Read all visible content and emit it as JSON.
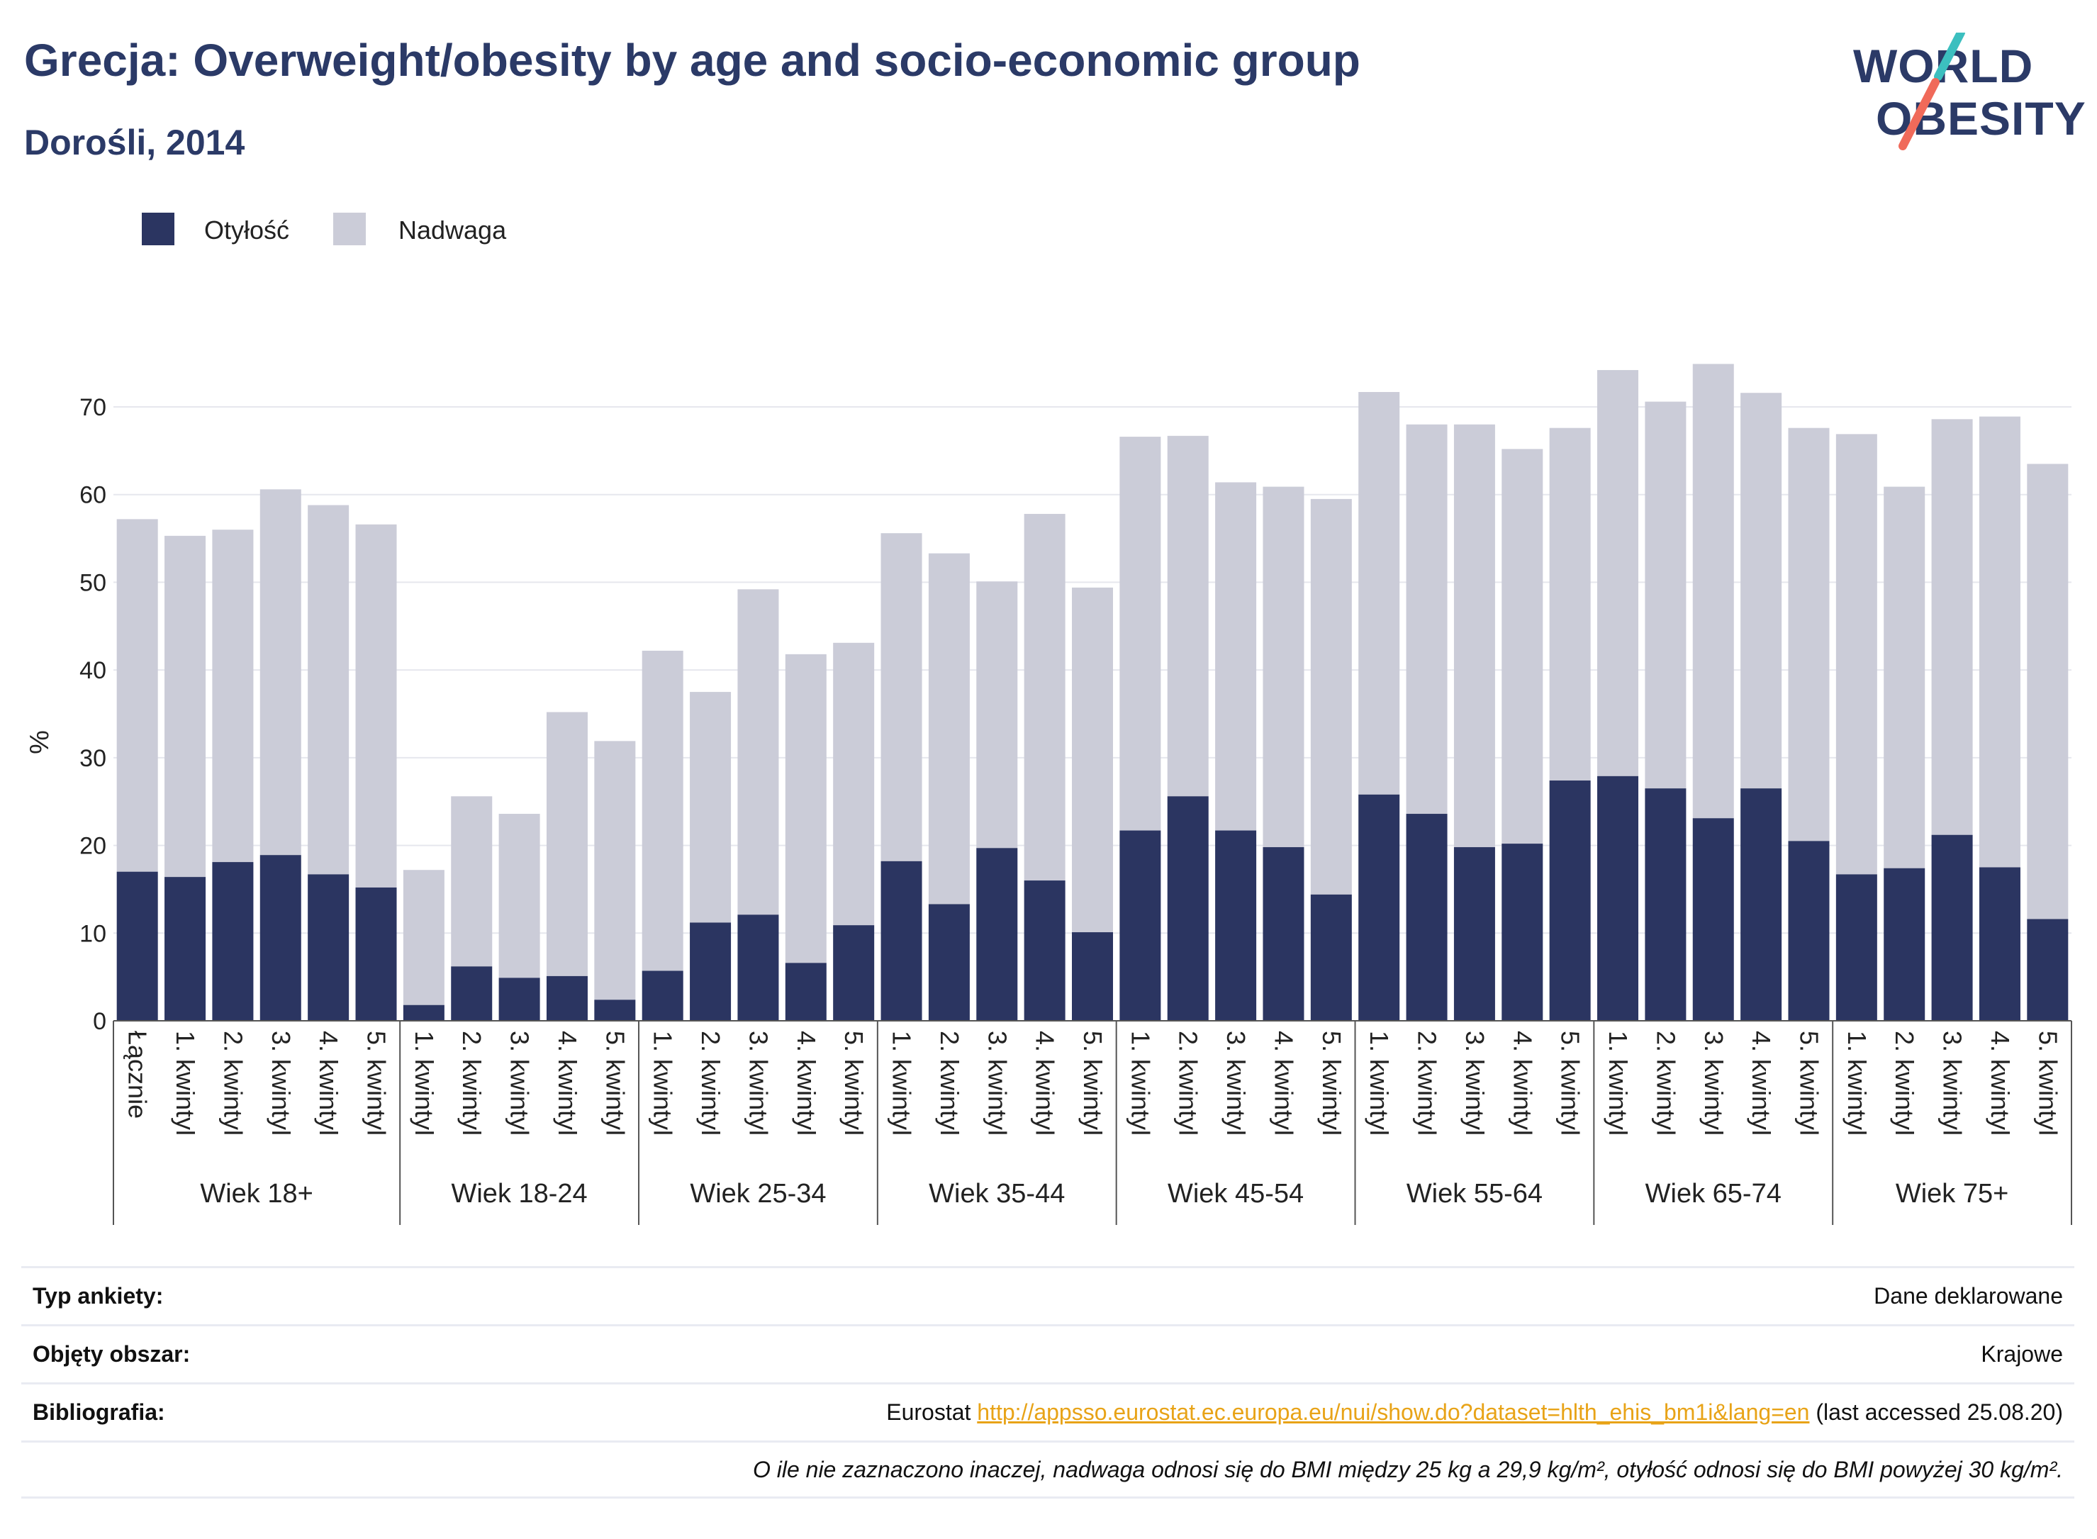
{
  "header": {
    "title": "Grecja: Overweight/obesity by age and socio-economic group",
    "subtitle": "Dorośli, 2014"
  },
  "logo": {
    "line1": "WORLD",
    "line2": "OBESITY",
    "colors": {
      "text": "#2b3a67",
      "slash_top": "#3cbfbf",
      "slash_bottom": "#f06a5a"
    }
  },
  "colors": {
    "obesity": "#2b3561",
    "overweight": "#cbccd8",
    "grid": "#e6e7ee",
    "axis": "#555555"
  },
  "chart_data": {
    "type": "bar",
    "stacked": true,
    "title": "",
    "ylabel": "%",
    "ylim": [
      0,
      80
    ],
    "yticks": [
      0,
      10,
      20,
      30,
      40,
      50,
      60,
      70
    ],
    "grid": true,
    "legend_placement": "top-left",
    "legend": [
      "Otyłość",
      "Nadwaga"
    ],
    "groups": [
      {
        "label": "Wiek 18+",
        "categories": [
          "Łącznie",
          "1. kwintyl",
          "2. kwintyl",
          "3. kwintyl",
          "4. kwintyl",
          "5. kwintyl"
        ],
        "obesity": [
          17.0,
          16.4,
          18.1,
          18.9,
          16.7,
          15.2
        ],
        "overweight": [
          40.2,
          38.9,
          37.9,
          41.7,
          42.1,
          41.4
        ]
      },
      {
        "label": "Wiek 18-24",
        "categories": [
          "1. kwintyl",
          "2. kwintyl",
          "3. kwintyl",
          "4. kwintyl",
          "5. kwintyl"
        ],
        "obesity": [
          1.8,
          6.2,
          4.9,
          5.1,
          2.4
        ],
        "overweight": [
          15.4,
          19.4,
          18.7,
          30.1,
          29.5
        ]
      },
      {
        "label": "Wiek 25-34",
        "categories": [
          "1. kwintyl",
          "2. kwintyl",
          "3. kwintyl",
          "4. kwintyl",
          "5. kwintyl"
        ],
        "obesity": [
          5.7,
          11.2,
          12.1,
          6.6,
          10.9
        ],
        "overweight": [
          36.5,
          26.3,
          37.1,
          35.2,
          32.2
        ]
      },
      {
        "label": "Wiek 35-44",
        "categories": [
          "1. kwintyl",
          "2. kwintyl",
          "3. kwintyl",
          "4. kwintyl",
          "5. kwintyl"
        ],
        "obesity": [
          18.2,
          13.3,
          19.7,
          16.0,
          10.1
        ],
        "overweight": [
          37.4,
          40.0,
          30.4,
          41.8,
          39.3
        ]
      },
      {
        "label": "Wiek 45-54",
        "categories": [
          "1. kwintyl",
          "2. kwintyl",
          "3. kwintyl",
          "4. kwintyl",
          "5. kwintyl"
        ],
        "obesity": [
          21.7,
          25.6,
          21.7,
          19.8,
          14.4
        ],
        "overweight": [
          44.9,
          41.1,
          39.7,
          41.1,
          45.1
        ]
      },
      {
        "label": "Wiek 55-64",
        "categories": [
          "1. kwintyl",
          "2. kwintyl",
          "3. kwintyl",
          "4. kwintyl",
          "5. kwintyl"
        ],
        "obesity": [
          25.8,
          23.6,
          19.8,
          20.2,
          27.4
        ],
        "overweight": [
          45.9,
          44.4,
          48.2,
          45.0,
          40.2
        ]
      },
      {
        "label": "Wiek 65-74",
        "categories": [
          "1. kwintyl",
          "2. kwintyl",
          "3. kwintyl",
          "4. kwintyl",
          "5. kwintyl"
        ],
        "obesity": [
          27.9,
          26.5,
          23.1,
          26.5,
          20.5
        ],
        "overweight": [
          46.3,
          44.1,
          51.8,
          45.1,
          47.1
        ]
      },
      {
        "label": "Wiek 75+",
        "categories": [
          "1. kwintyl",
          "2. kwintyl",
          "3. kwintyl",
          "4. kwintyl",
          "5. kwintyl"
        ],
        "obesity": [
          16.7,
          17.4,
          21.2,
          17.5,
          11.6
        ],
        "overweight": [
          50.2,
          43.5,
          47.4,
          51.4,
          51.9
        ]
      }
    ]
  },
  "info": {
    "survey_label": "Typ ankiety:",
    "survey_value": "Dane deklarowane",
    "area_label": "Objęty obszar:",
    "area_value": "Krajowe",
    "biblio_label": "Bibliografia:",
    "biblio_prefix": "Eurostat",
    "biblio_link": "http://appsso.eurostat.ec.europa.eu/nui/show.do?dataset=hlth_ehis_bm1i&lang=en",
    "biblio_suffix": "(last accessed 25.08.20)",
    "note": "O ile nie zaznaczono inaczej, nadwaga odnosi się do BMI między 25 kg a 29,9 kg/m², otyłość odnosi się do BMI powyżej 30 kg/m²."
  }
}
